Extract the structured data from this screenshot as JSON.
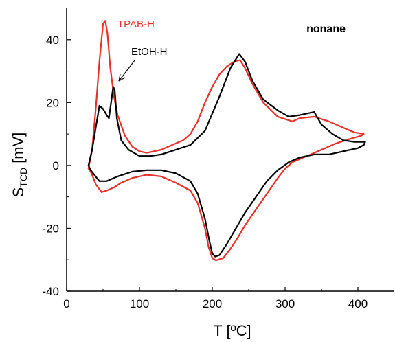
{
  "chart_data": {
    "type": "line",
    "panel_label": "nonane",
    "xlabel": "T [ºC]",
    "ylabel_main": "S",
    "ylabel_sub": "TCD",
    "ylabel_unit": " [mV]",
    "xlim": [
      0,
      450
    ],
    "ylim": [
      -40,
      50
    ],
    "xticks": [
      0,
      100,
      200,
      300,
      400
    ],
    "yticks": [
      -40,
      -20,
      0,
      20,
      40
    ],
    "grid": false,
    "annotations": [
      {
        "text": "TPAB-H",
        "color": "#e8302a"
      },
      {
        "text": "EtOH-H",
        "color": "#000000"
      }
    ],
    "series": [
      {
        "name": "TPAB-H",
        "color": "#e8302a",
        "x": [
          30,
          35,
          40,
          45,
          50,
          53,
          56,
          60,
          65,
          70,
          80,
          90,
          100,
          110,
          120,
          130,
          140,
          150,
          160,
          170,
          180,
          190,
          200,
          210,
          220,
          230,
          238,
          245,
          255,
          270,
          290,
          310,
          320,
          340,
          360,
          380,
          395,
          408,
          405,
          390,
          370,
          350,
          330,
          310,
          300,
          290,
          275,
          260,
          245,
          235,
          225,
          215,
          205,
          200,
          195,
          190,
          180,
          170,
          150,
          130,
          110,
          90,
          75,
          65,
          55,
          48,
          40,
          35,
          32,
          30
        ],
        "y": [
          -1,
          5,
          18,
          33,
          45,
          46,
          42,
          31,
          22,
          16,
          9.5,
          6,
          4.5,
          4,
          4.5,
          5,
          6,
          7,
          8,
          10,
          14,
          20,
          25,
          29,
          31.5,
          33,
          33.5,
          31,
          26,
          20,
          15.5,
          14,
          15,
          15.5,
          14,
          12,
          10.5,
          10,
          9.5,
          8.5,
          7,
          5,
          3,
          1,
          -1,
          -4,
          -9,
          -14,
          -19,
          -23,
          -26.5,
          -29.5,
          -30.2,
          -29.5,
          -26,
          -20,
          -12,
          -8,
          -5.5,
          -3.5,
          -3,
          -4,
          -5.5,
          -7,
          -8,
          -8.5,
          -6,
          -3,
          -1.5,
          -1
        ]
      },
      {
        "name": "EtOH-H",
        "color": "#000000",
        "x": [
          30,
          35,
          40,
          45,
          50,
          55,
          58,
          61,
          64,
          66,
          69,
          75,
          85,
          100,
          115,
          130,
          150,
          170,
          190,
          210,
          225,
          237,
          245,
          255,
          270,
          290,
          305,
          320,
          340,
          350,
          365,
          380,
          395,
          410,
          408,
          400,
          380,
          360,
          340,
          320,
          305,
          290,
          275,
          260,
          245,
          230,
          220,
          210,
          204,
          200,
          196,
          190,
          180,
          170,
          150,
          130,
          110,
          90,
          70,
          55,
          45,
          38,
          33,
          30
        ],
        "y": [
          0,
          5,
          12,
          19,
          18,
          16,
          15,
          20,
          25,
          24,
          15,
          8,
          5,
          3,
          3,
          3.5,
          5,
          6.5,
          11,
          22,
          31,
          35.5,
          33,
          27,
          21,
          17.5,
          15.5,
          16,
          17,
          13,
          10,
          8,
          7.5,
          7.5,
          6.5,
          5.5,
          4.5,
          3.5,
          3.5,
          2.5,
          1,
          -1.5,
          -5,
          -10,
          -15,
          -21,
          -25,
          -28.5,
          -29,
          -28,
          -24,
          -17,
          -9,
          -5,
          -2.5,
          -1.5,
          -1.5,
          -2,
          -3.5,
          -5,
          -5,
          -3,
          -1.5,
          0
        ]
      }
    ]
  }
}
